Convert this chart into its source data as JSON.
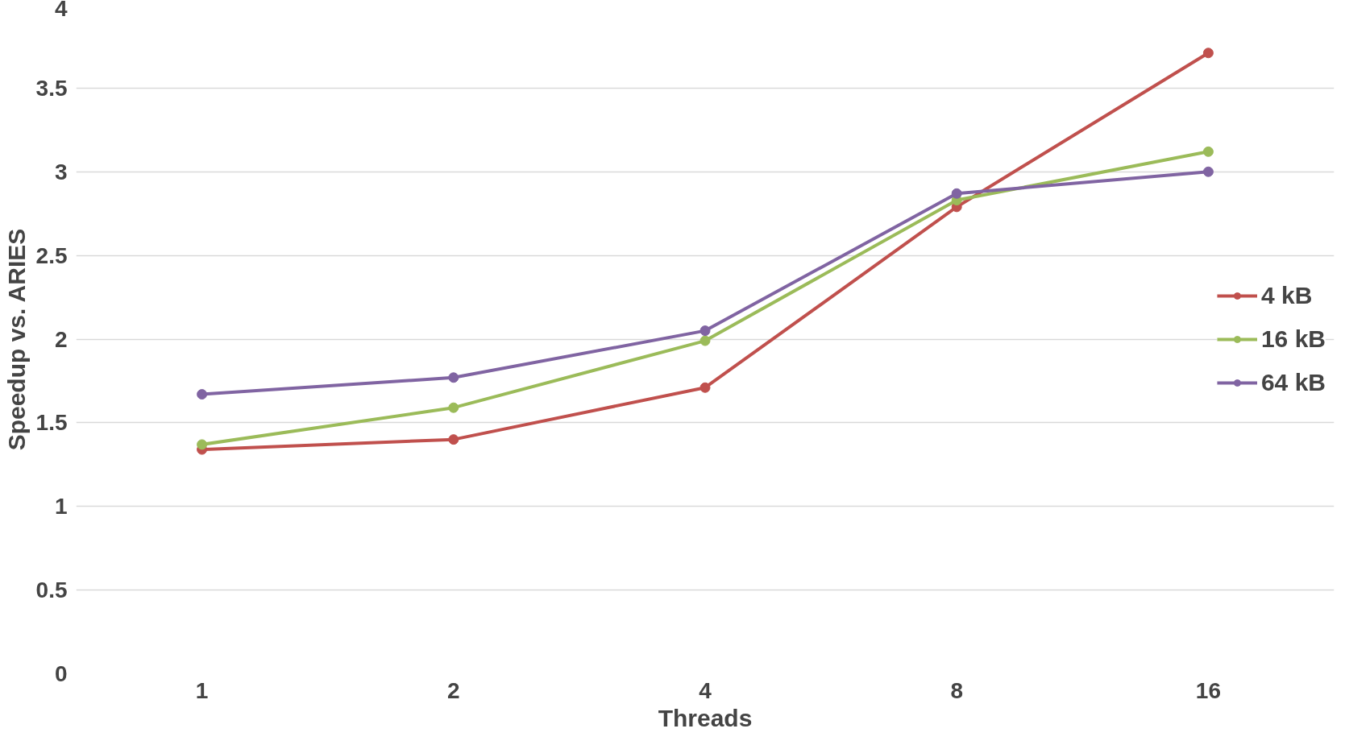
{
  "chart_data": {
    "type": "line",
    "xlabel": "Threads",
    "ylabel": "Speedup vs. ARIES",
    "categories": [
      "1",
      "2",
      "4",
      "8",
      "16"
    ],
    "series": [
      {
        "name": "4 kB",
        "color": "#c0504d",
        "values": [
          1.34,
          1.4,
          1.71,
          2.79,
          3.71
        ]
      },
      {
        "name": "16 kB",
        "color": "#9bbb59",
        "values": [
          1.37,
          1.59,
          1.99,
          2.83,
          3.12
        ]
      },
      {
        "name": "64 kB",
        "color": "#8064a2",
        "values": [
          1.67,
          1.77,
          2.05,
          2.87,
          3.0
        ]
      }
    ],
    "ylim": [
      0,
      4
    ],
    "yticks": [
      0,
      0.5,
      1,
      1.5,
      2,
      2.5,
      3,
      3.5,
      4
    ],
    "grid": "y",
    "legend": "right",
    "marker": "circle",
    "line_style": "solid"
  }
}
